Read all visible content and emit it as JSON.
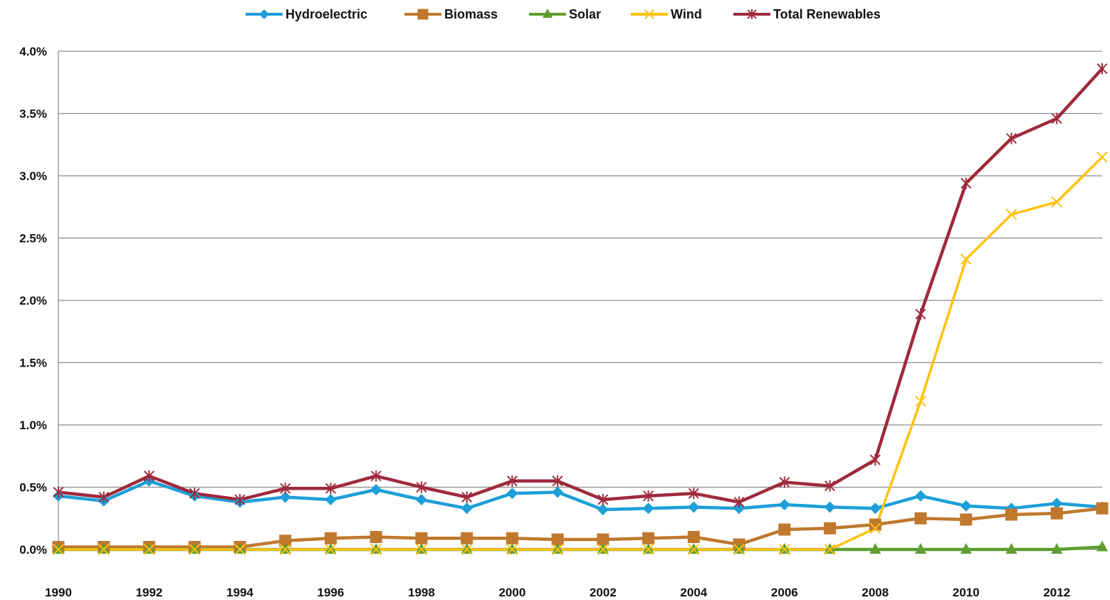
{
  "chart_data": {
    "type": "line",
    "title": "",
    "xlabel": "",
    "ylabel": "",
    "ylim": [
      0,
      4.0
    ],
    "xlim": [
      1990,
      2013
    ],
    "grid": "horizontal",
    "legend_position": "top",
    "y_ticks": [
      "0.0%",
      "0.5%",
      "1.0%",
      "1.5%",
      "2.0%",
      "2.5%",
      "3.0%",
      "3.5%",
      "4.0%"
    ],
    "x_ticks": [
      "1990",
      "1992",
      "1994",
      "1996",
      "1998",
      "2000",
      "2002",
      "2004",
      "2006",
      "2008",
      "2010",
      "2012"
    ],
    "x": [
      1990,
      1991,
      1992,
      1993,
      1994,
      1995,
      1996,
      1997,
      1998,
      1999,
      2000,
      2001,
      2002,
      2003,
      2004,
      2005,
      2006,
      2007,
      2008,
      2009,
      2010,
      2011,
      2012,
      2013
    ],
    "series": [
      {
        "name": "Hydroelectric",
        "color": "#1E9FD8",
        "marker": "diamond",
        "values": [
          0.43,
          0.39,
          0.55,
          0.43,
          0.38,
          0.42,
          0.4,
          0.48,
          0.4,
          0.33,
          0.45,
          0.46,
          0.32,
          0.33,
          0.34,
          0.33,
          0.36,
          0.34,
          0.33,
          0.43,
          0.35,
          0.33,
          0.37,
          0.34
        ]
      },
      {
        "name": "Biomass",
        "color": "#C0782E",
        "marker": "square",
        "values": [
          0.02,
          0.02,
          0.02,
          0.02,
          0.02,
          0.07,
          0.09,
          0.1,
          0.09,
          0.09,
          0.09,
          0.08,
          0.08,
          0.09,
          0.1,
          0.04,
          0.16,
          0.17,
          0.2,
          0.25,
          0.24,
          0.28,
          0.29,
          0.33
        ]
      },
      {
        "name": "Solar",
        "color": "#5E9E32",
        "marker": "triangle",
        "values": [
          0.0,
          0.0,
          0.0,
          0.0,
          0.0,
          0.0,
          0.0,
          0.0,
          0.0,
          0.0,
          0.0,
          0.0,
          0.0,
          0.0,
          0.0,
          0.0,
          0.0,
          0.0,
          0.0,
          0.0,
          0.0,
          0.0,
          0.0,
          0.02
        ]
      },
      {
        "name": "Wind",
        "color": "#FFC20E",
        "marker": "x",
        "values": [
          0.0,
          0.0,
          0.0,
          0.0,
          0.0,
          0.0,
          0.0,
          0.0,
          0.0,
          0.0,
          0.0,
          0.0,
          0.0,
          0.0,
          0.0,
          0.0,
          0.0,
          0.0,
          0.17,
          1.19,
          2.33,
          2.69,
          2.79,
          3.15
        ]
      },
      {
        "name": "Total Renewables",
        "color": "#9E2A3C",
        "marker": "star",
        "values": [
          0.46,
          0.42,
          0.59,
          0.45,
          0.4,
          0.49,
          0.49,
          0.59,
          0.5,
          0.42,
          0.55,
          0.55,
          0.4,
          0.43,
          0.45,
          0.38,
          0.54,
          0.51,
          0.72,
          1.89,
          2.94,
          3.3,
          3.46,
          3.86
        ]
      }
    ]
  }
}
